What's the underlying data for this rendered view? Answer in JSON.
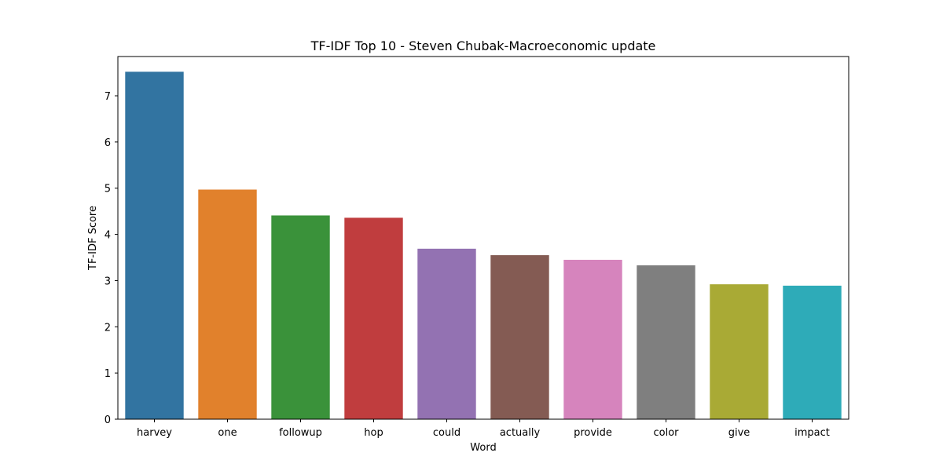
{
  "chart_data": {
    "type": "bar",
    "title": "TF-IDF Top 10 - Steven Chubak-Macroeconomic update",
    "xlabel": "Word",
    "ylabel": "TF-IDF Score",
    "categories": [
      "harvey",
      "one",
      "followup",
      "hop",
      "could",
      "actually",
      "provide",
      "color",
      "give",
      "impact"
    ],
    "values": [
      7.52,
      4.97,
      4.41,
      4.36,
      3.69,
      3.55,
      3.45,
      3.33,
      2.92,
      2.89
    ],
    "colors": [
      "#3274a1",
      "#e1812c",
      "#3a923a",
      "#c03d3e",
      "#9372b2",
      "#845b53",
      "#d684bd",
      "#7f7f7f",
      "#a9aa35",
      "#2eabb8"
    ],
    "ylim": [
      0,
      7.85
    ],
    "yticks": [
      0,
      1,
      2,
      3,
      4,
      5,
      6,
      7
    ],
    "grid": false,
    "legend": "none"
  }
}
